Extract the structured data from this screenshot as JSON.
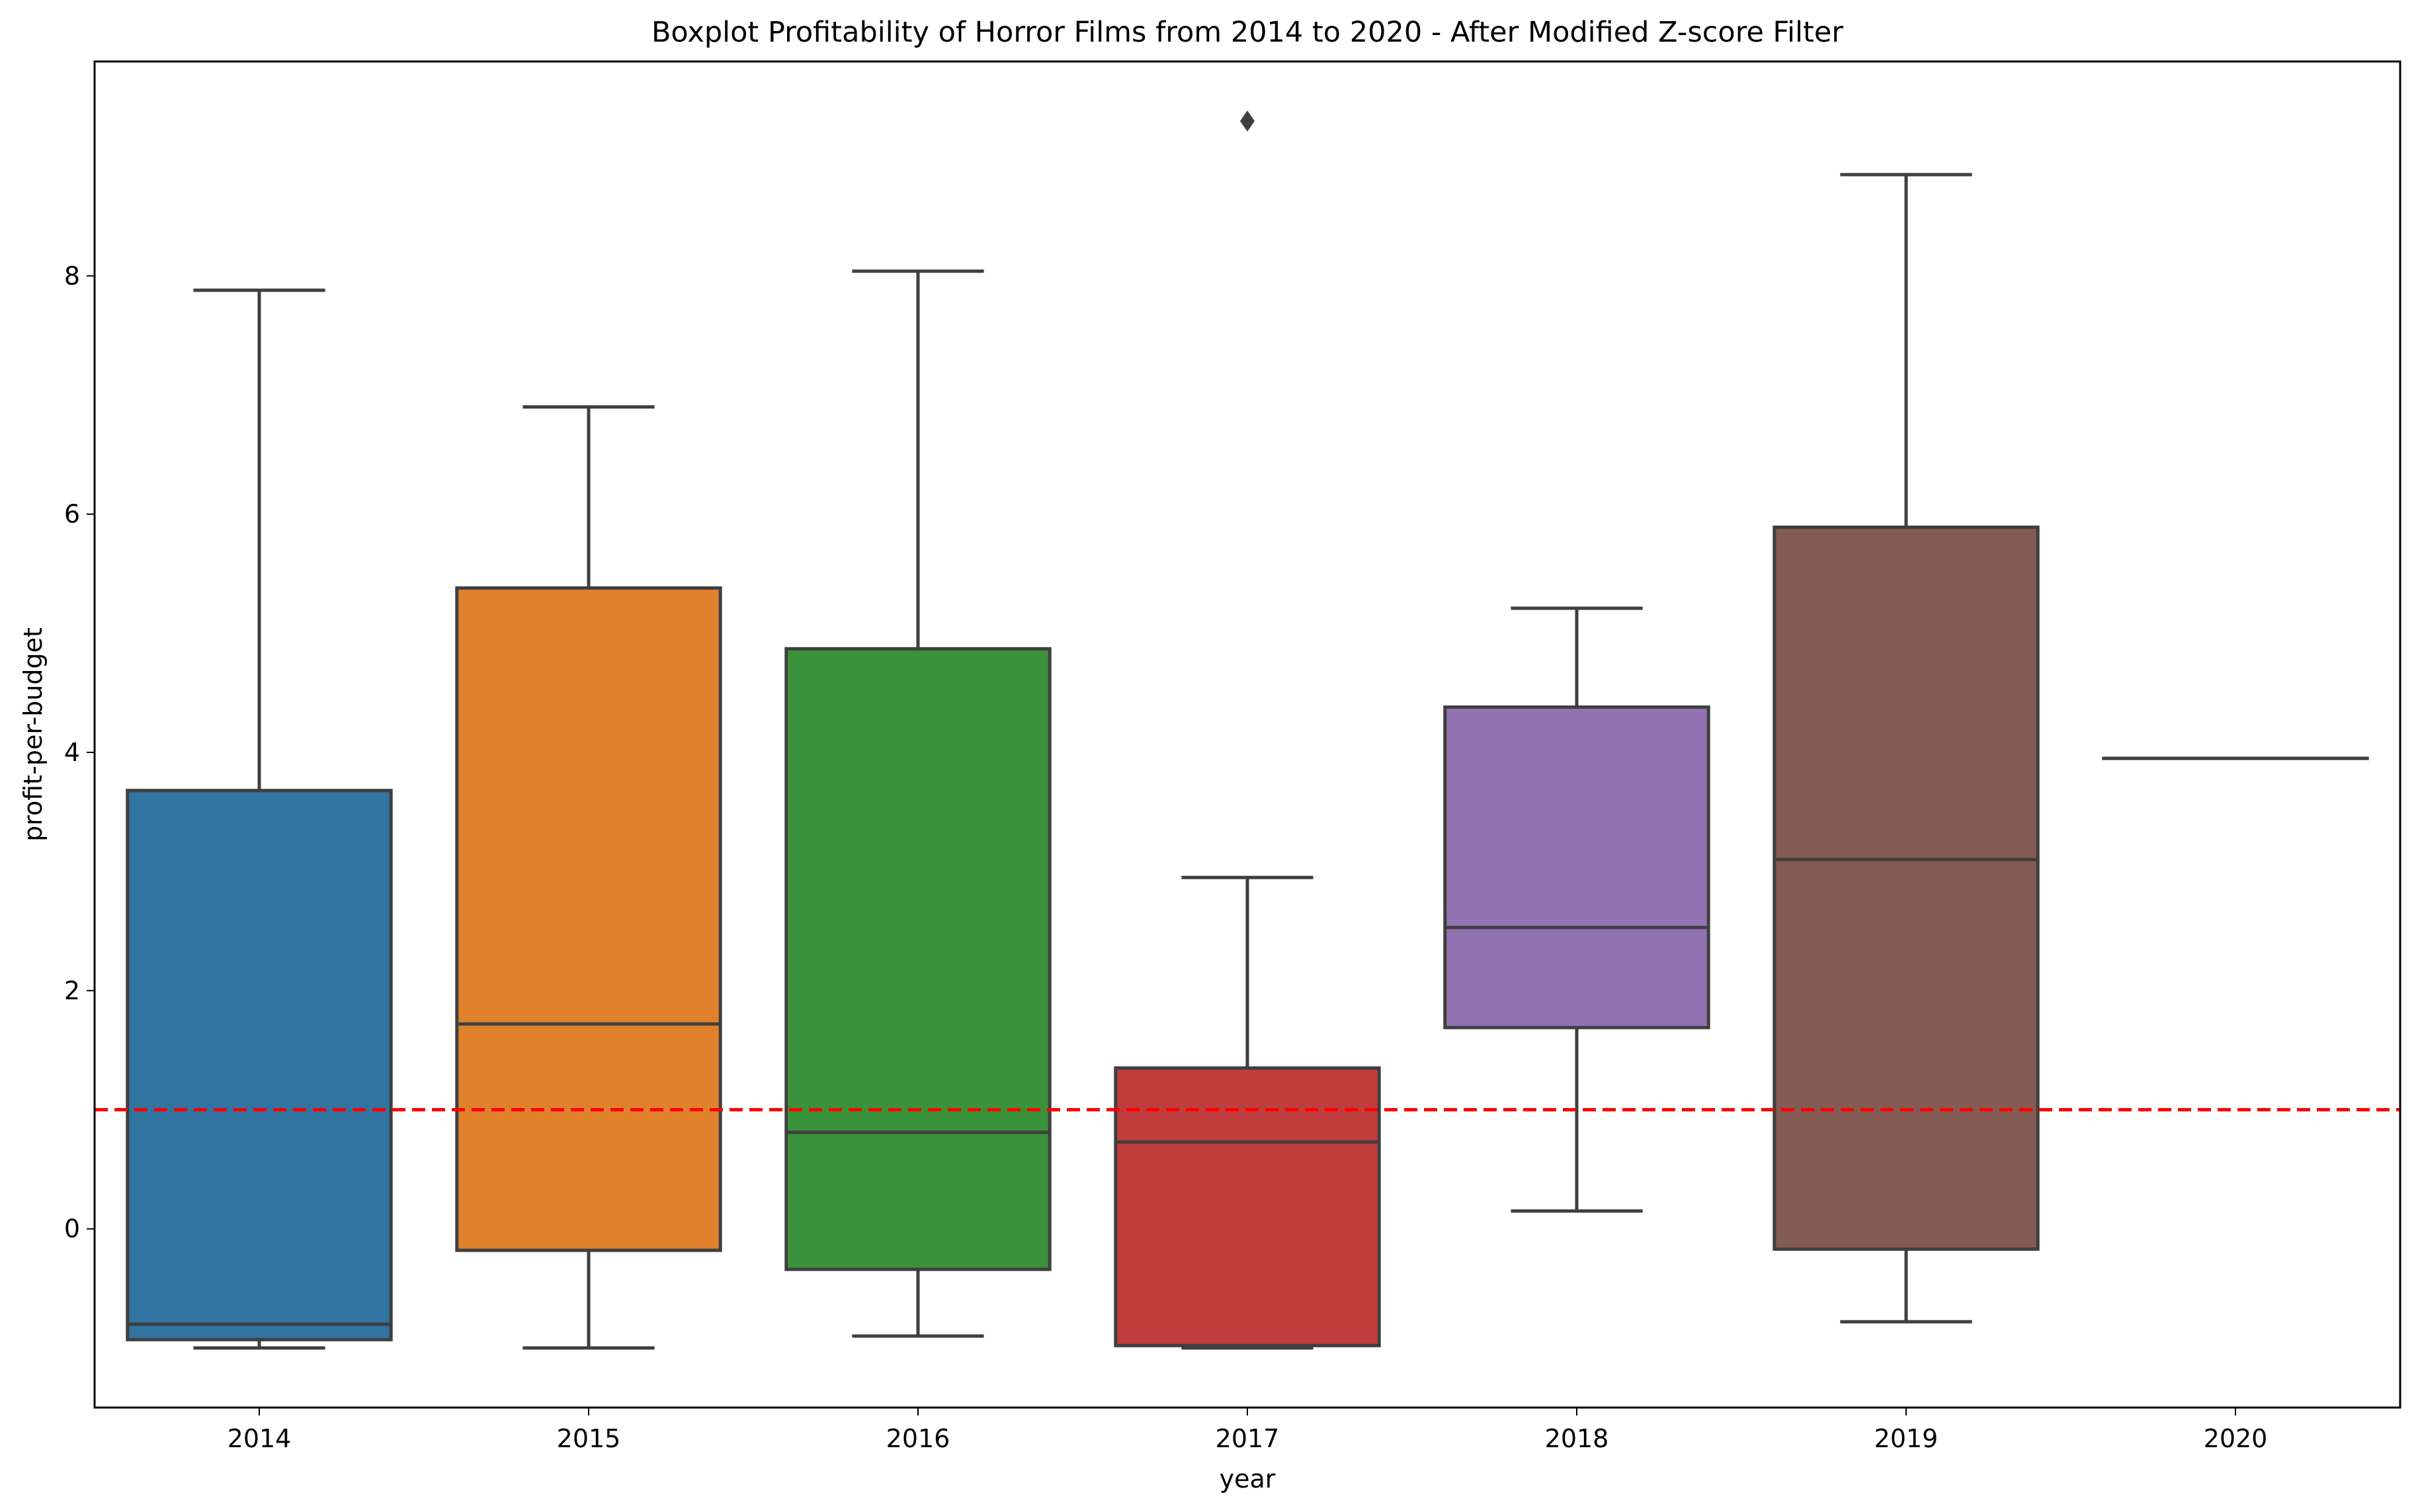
{
  "chart_data": {
    "type": "boxplot",
    "title": "Boxplot Profitability of Horror Films from 2014 to 2020 - After Modified Z-score Filter",
    "xlabel": "year",
    "ylabel": "profit-per-budget",
    "ylim": [
      -1.5,
      9.8
    ],
    "yticks": [
      0,
      2,
      4,
      6,
      8
    ],
    "grid": false,
    "categories": [
      "2014",
      "2015",
      "2016",
      "2017",
      "2018",
      "2019",
      "2020"
    ],
    "boxes": [
      {
        "year": "2014",
        "whisker_low": -1.0,
        "q1": -0.93,
        "median": -0.8,
        "q3": 3.68,
        "whisker_high": 7.88,
        "outliers": [],
        "color": "#3274a1"
      },
      {
        "year": "2015",
        "whisker_low": -1.0,
        "q1": -0.18,
        "median": 1.72,
        "q3": 5.38,
        "whisker_high": 6.9,
        "outliers": [],
        "color": "#e1812c"
      },
      {
        "year": "2016",
        "whisker_low": -0.9,
        "q1": -0.34,
        "median": 0.81,
        "q3": 4.87,
        "whisker_high": 8.04,
        "outliers": [],
        "color": "#3a923a"
      },
      {
        "year": "2017",
        "whisker_low": -1.0,
        "q1": -0.98,
        "median": 0.73,
        "q3": 1.35,
        "whisker_high": 2.95,
        "outliers": [
          9.3
        ],
        "color": "#c03d3e"
      },
      {
        "year": "2018",
        "whisker_low": 0.15,
        "q1": 1.69,
        "median": 2.53,
        "q3": 4.38,
        "whisker_high": 5.21,
        "outliers": [],
        "color": "#9372b2"
      },
      {
        "year": "2019",
        "whisker_low": -0.78,
        "q1": -0.17,
        "median": 3.1,
        "q3": 5.89,
        "whisker_high": 8.85,
        "outliers": [],
        "color": "#845b53"
      },
      {
        "year": "2020",
        "whisker_low": 3.95,
        "q1": 3.95,
        "median": 3.95,
        "q3": 3.95,
        "whisker_high": 3.95,
        "outliers": [],
        "color": "#d684bd"
      }
    ],
    "reference_line": {
      "y": 1.0,
      "style": "dashed",
      "color": "#ff0000"
    },
    "colors": {
      "edge": "#3f3f3f",
      "reference": "#ff0000"
    }
  }
}
